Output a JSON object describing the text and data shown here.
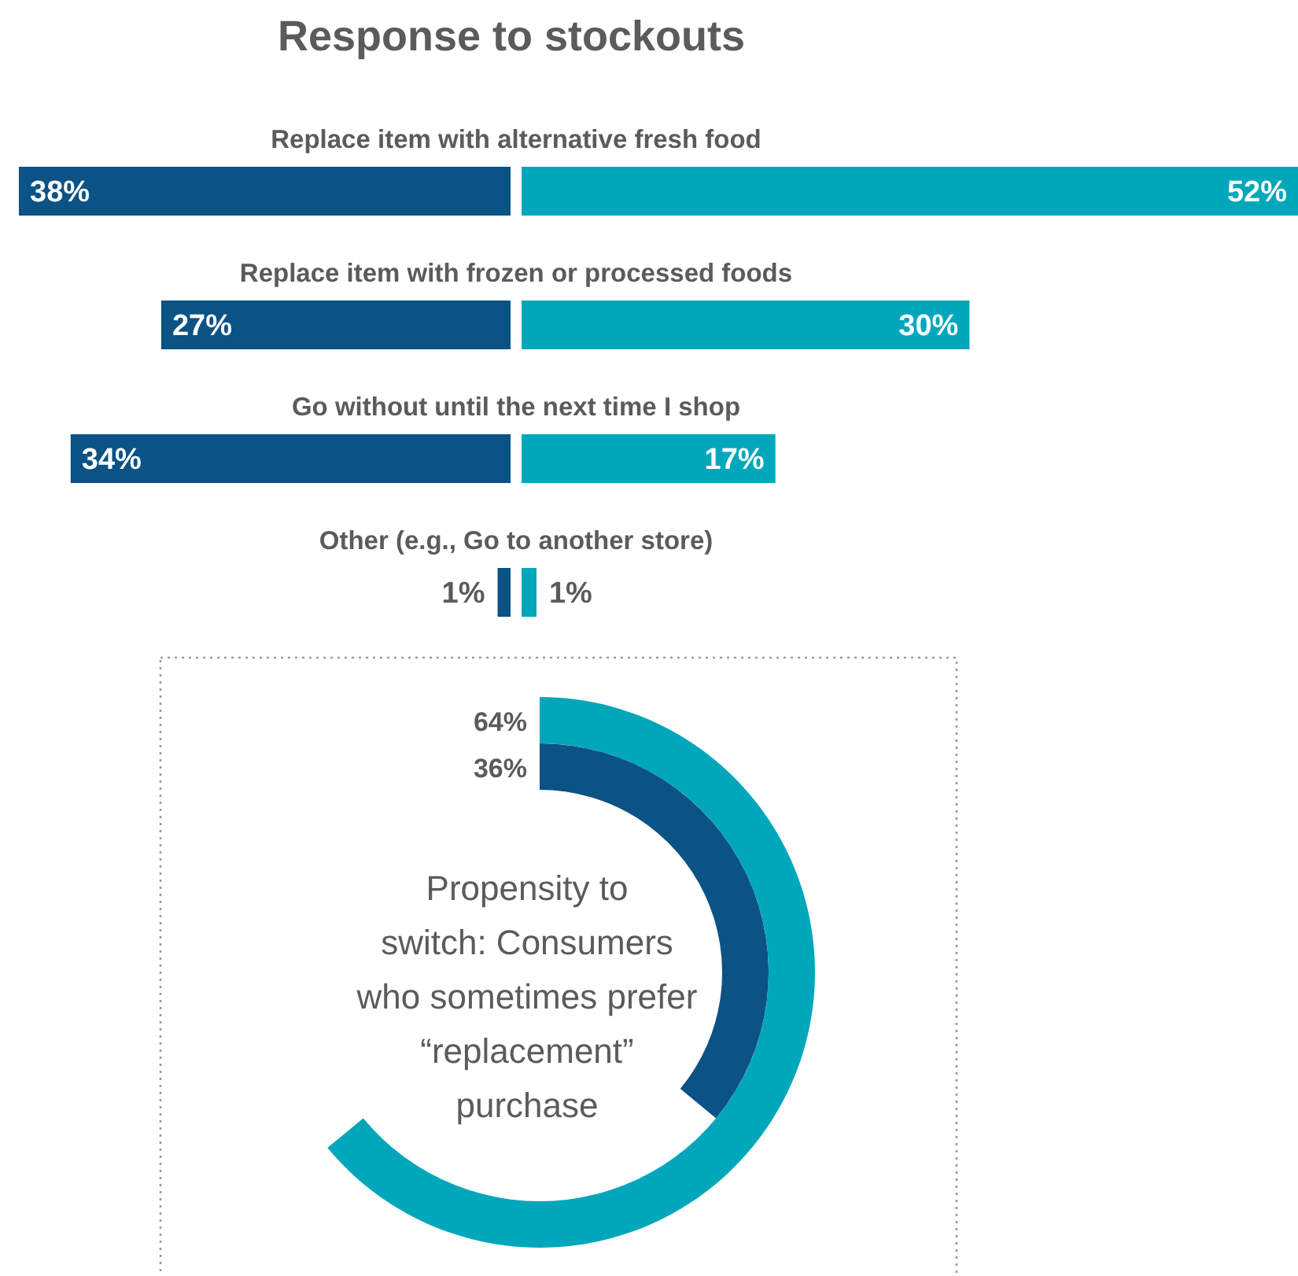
{
  "chart_data": [
    {
      "type": "bar",
      "title": "Response to stockouts",
      "orientation": "horizontal",
      "categories": [
        "Replace item with alternative fresh food",
        "Replace item with frozen or processed foods",
        "Go without until the next time I shop",
        "Other (e.g., Go to another store)"
      ],
      "xlim": [
        38,
        0
      ],
      "series": [
        {
          "color": "#0b5285",
          "values": [
            38,
            27,
            34,
            1
          ],
          "value_labels": [
            "38%",
            "27%",
            "34%",
            "1%"
          ]
        }
      ]
    },
    {
      "type": "bar",
      "orientation": "horizontal",
      "categories": [
        null,
        null,
        null,
        null
      ],
      "xlim": [
        0,
        52
      ],
      "series": [
        {
          "color": "#00a7bb",
          "values": [
            52,
            30,
            17,
            1
          ],
          "value_labels": [
            "52%",
            "30%",
            "17%",
            "1%"
          ]
        }
      ]
    },
    {
      "type": "other",
      "title": "Propensity to switch: Consumers who sometimes prefer “replacement” purchase",
      "categories": [
        null,
        null
      ],
      "values": [
        64,
        36
      ],
      "colors": [
        "#00a7bb",
        "#0b5285"
      ],
      "value_labels": [
        "64%",
        "36%"
      ]
    }
  ]
}
